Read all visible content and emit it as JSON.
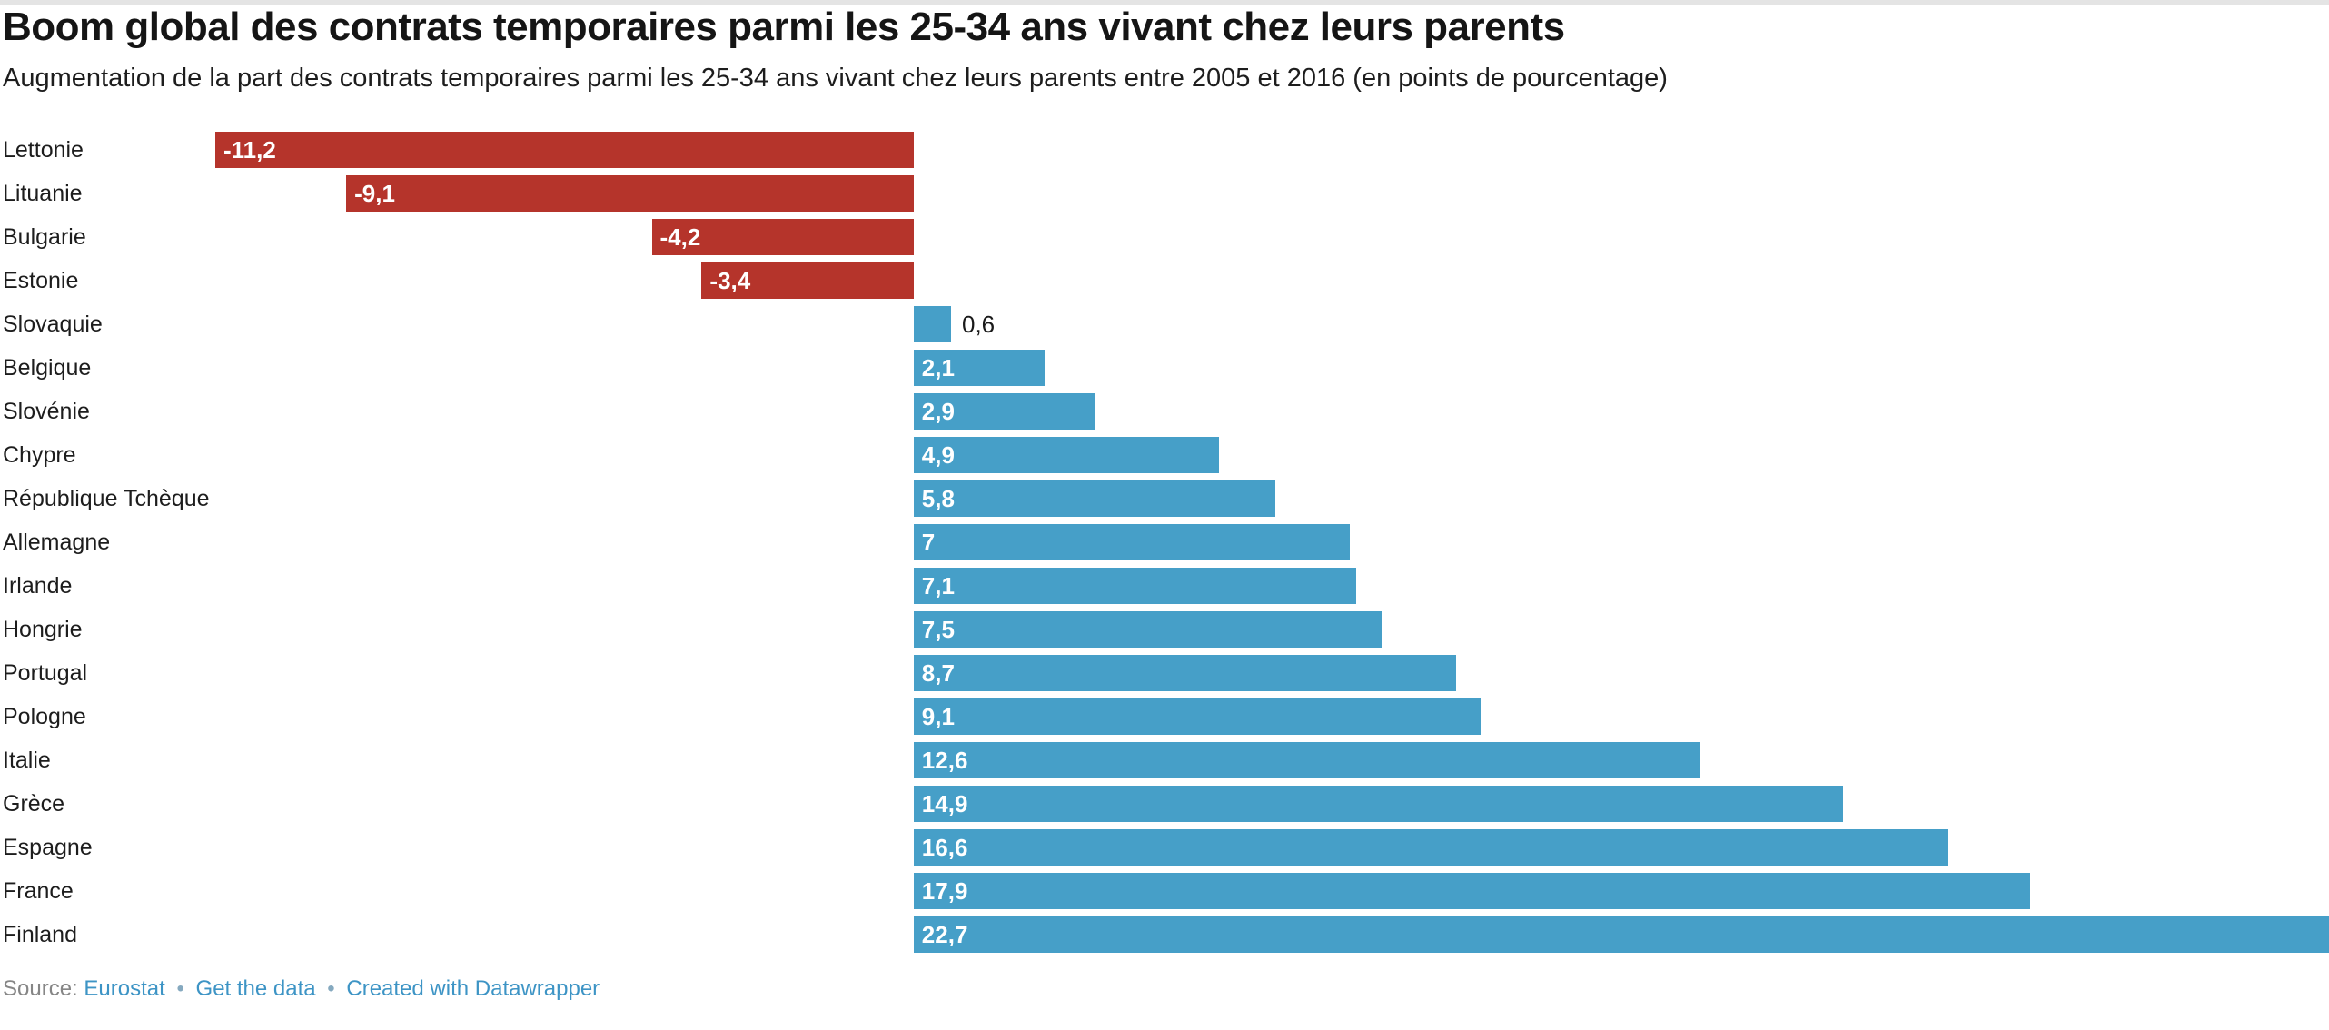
{
  "header": {
    "title": "Boom global des contrats temporaires parmi les 25-34 ans vivant chez leurs parents",
    "subtitle": "Augmentation de la part des contrats temporaires parmi les 25-34 ans vivant chez leurs parents entre 2005 et 2016 (en points de pourcentage)"
  },
  "chart_data": {
    "type": "bar",
    "orientation": "horizontal",
    "title": "Boom global des contrats temporaires parmi les 25-34 ans vivant chez leurs parents",
    "subtitle": "Augmentation de la part des contrats temporaires parmi les 25-34 ans vivant chez leurs parents entre 2005 et 2016 (en points de pourcentage)",
    "categories": [
      "Lettonie",
      "Lituanie",
      "Bulgarie",
      "Estonie",
      "Slovaquie",
      "Belgique",
      "Slovénie",
      "Chypre",
      "République Tchèque",
      "Allemagne",
      "Irlande",
      "Hongrie",
      "Portugal",
      "Pologne",
      "Italie",
      "Grèce",
      "Espagne",
      "France",
      "Finland"
    ],
    "values": [
      -11.2,
      -9.1,
      -4.2,
      -3.4,
      0.6,
      2.1,
      2.9,
      4.9,
      5.8,
      7,
      7.1,
      7.5,
      8.7,
      9.1,
      12.6,
      14.9,
      16.6,
      17.9,
      22.7
    ],
    "value_labels": [
      "-11,2",
      "-9,1",
      "-4,2",
      "-3,4",
      "0,6",
      "2,1",
      "2,9",
      "4,9",
      "5,8",
      "7",
      "7,1",
      "7,5",
      "8,7",
      "9,1",
      "12,6",
      "14,9",
      "16,6",
      "17,9",
      "22,7"
    ],
    "xlim": [
      -11.2,
      22.7
    ],
    "grid": false,
    "legend": null,
    "colors": {
      "negative_bar": "#b5342b",
      "positive_bar": "#469fc8",
      "value_label_inside": "#ffffff",
      "value_label_outside": "#1a1a1a"
    }
  },
  "footer": {
    "source_label": "Source:",
    "separator": "•",
    "links": [
      {
        "label": "Eurostat"
      },
      {
        "label": "Get the data"
      },
      {
        "label": "Created with Datawrapper"
      }
    ]
  }
}
